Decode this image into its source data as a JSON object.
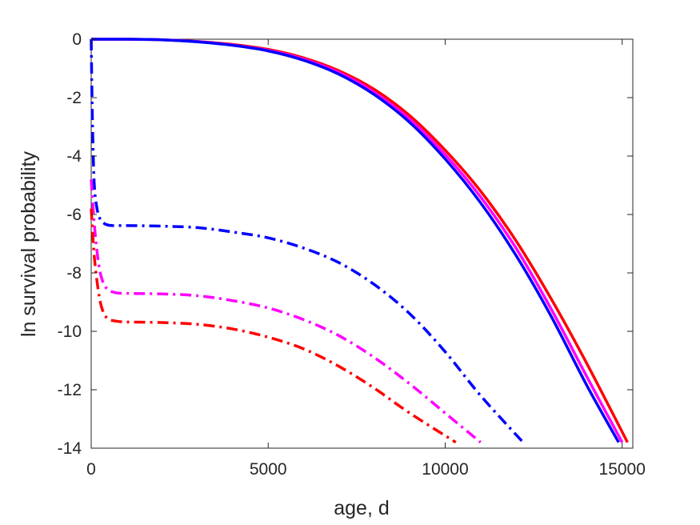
{
  "chart_data": {
    "type": "line",
    "xlabel": "age, d",
    "ylabel": "ln survival probability",
    "xlim": [
      0,
      15300
    ],
    "ylim": [
      -14,
      0
    ],
    "xticks": [
      0,
      5000,
      10000,
      15000
    ],
    "xtick_labels": [
      "0",
      "5000",
      "10000",
      "15000"
    ],
    "yticks": [
      0,
      -2,
      -4,
      -6,
      -8,
      -10,
      -12,
      -14
    ],
    "ytick_labels": [
      "0",
      "-2",
      "-4",
      "-6",
      "-8",
      "-10",
      "-12",
      "-14"
    ],
    "grid": false,
    "legend": "none",
    "series": [
      {
        "style": "solid",
        "color": "#ff0000",
        "x": [
          0,
          1000,
          2000,
          3000,
          4000,
          5000,
          6000,
          7000,
          8000,
          9000,
          10000,
          11000,
          12000,
          13000,
          14000,
          15150
        ],
        "y": [
          0,
          0,
          -0.02,
          -0.08,
          -0.18,
          -0.35,
          -0.64,
          -1.08,
          -1.72,
          -2.62,
          -3.8,
          -5.2,
          -6.9,
          -8.9,
          -11.1,
          -13.8
        ]
      },
      {
        "style": "solid",
        "color": "#ff00ff",
        "x": [
          0,
          1000,
          2000,
          3000,
          4000,
          5000,
          6000,
          7000,
          8000,
          9000,
          10000,
          11000,
          12000,
          13000,
          14000,
          15000
        ],
        "y": [
          0,
          0,
          -0.02,
          -0.08,
          -0.2,
          -0.38,
          -0.68,
          -1.14,
          -1.82,
          -2.74,
          -3.95,
          -5.4,
          -7.15,
          -9.25,
          -11.55,
          -13.8
        ]
      },
      {
        "style": "solid",
        "color": "#0000ff",
        "x": [
          0,
          1000,
          2000,
          3000,
          4000,
          5000,
          6000,
          7000,
          8000,
          9000,
          10000,
          11000,
          12000,
          13000,
          14000,
          14900
        ],
        "y": [
          0,
          0,
          -0.02,
          -0.09,
          -0.21,
          -0.4,
          -0.72,
          -1.2,
          -1.9,
          -2.85,
          -4.1,
          -5.6,
          -7.4,
          -9.5,
          -11.85,
          -13.8
        ]
      },
      {
        "style": "dashdot",
        "color": "#0000ff",
        "x": [
          0,
          30,
          80,
          150,
          250,
          400,
          600,
          1000,
          2000,
          3000,
          4000,
          5000,
          6000,
          7000,
          8000,
          9000,
          10000,
          11000,
          12200
        ],
        "y": [
          0,
          -2.5,
          -4.8,
          -5.7,
          -6.15,
          -6.33,
          -6.38,
          -6.38,
          -6.4,
          -6.45,
          -6.6,
          -6.8,
          -7.15,
          -7.65,
          -8.4,
          -9.4,
          -10.7,
          -12.2,
          -13.8
        ]
      },
      {
        "style": "dashdot",
        "color": "#ff00ff",
        "x": [
          0,
          50,
          100,
          200,
          300,
          450,
          700,
          1000,
          2000,
          3000,
          4000,
          5000,
          6000,
          7000,
          8000,
          9000,
          10000,
          11000
        ],
        "y": [
          -4.8,
          -5.7,
          -6.5,
          -7.6,
          -8.2,
          -8.55,
          -8.68,
          -8.7,
          -8.72,
          -8.78,
          -8.95,
          -9.2,
          -9.6,
          -10.15,
          -10.9,
          -11.8,
          -12.8,
          -13.8
        ]
      },
      {
        "style": "dashdot",
        "color": "#ff0000",
        "x": [
          0,
          50,
          100,
          200,
          300,
          450,
          700,
          1000,
          2000,
          3000,
          4000,
          5000,
          6000,
          7000,
          8000,
          9000,
          10300
        ],
        "y": [
          -5.8,
          -6.8,
          -7.6,
          -8.6,
          -9.2,
          -9.55,
          -9.65,
          -9.68,
          -9.7,
          -9.76,
          -9.92,
          -10.2,
          -10.6,
          -11.2,
          -11.95,
          -12.8,
          -13.8
        ]
      }
    ]
  }
}
